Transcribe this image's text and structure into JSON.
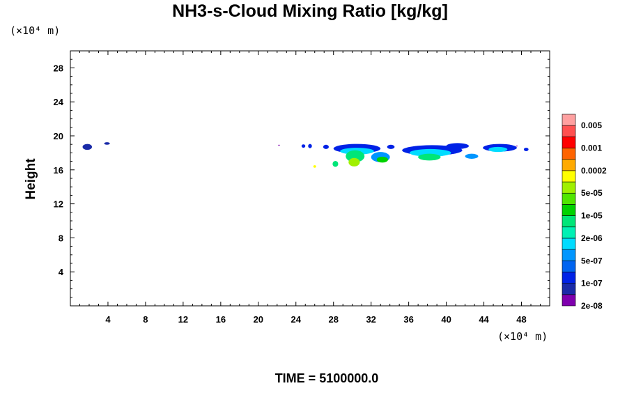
{
  "chart_data": {
    "type": "heatmap",
    "title": "NH3-s-Cloud Mixing Ratio [kg/kg]",
    "ylabel": "Height",
    "x_unit": "(×10⁴ m)",
    "y_unit": "(×10⁴ m)",
    "x_ticks": [
      4,
      8,
      12,
      16,
      20,
      24,
      28,
      32,
      36,
      40,
      44,
      48
    ],
    "y_ticks": [
      4,
      8,
      12,
      16,
      20,
      24,
      28
    ],
    "xlim": [
      0,
      51
    ],
    "ylim": [
      0,
      30
    ],
    "colorbar": {
      "labels": [
        "0.005",
        "0.001",
        "0.0002",
        "5e-05",
        "1e-05",
        "2e-06",
        "5e-07",
        "1e-07",
        "2e-08"
      ],
      "colors": [
        "#7f00ae",
        "#1a2ba8",
        "#0022e6",
        "#0064f0",
        "#0096ff",
        "#00dcff",
        "#00f0b4",
        "#00e678",
        "#00d200",
        "#50e600",
        "#a0f000",
        "#ffff00",
        "#ffaa00",
        "#ff6400",
        "#ff0000",
        "#ff5050",
        "#ffa0a0"
      ]
    },
    "regions": [
      {
        "x": 1.8,
        "y": 18.7,
        "rx": 0.5,
        "ry": 0.35,
        "level": 1
      },
      {
        "x": 3.9,
        "y": 19.1,
        "rx": 0.3,
        "ry": 0.15,
        "level": 1
      },
      {
        "x": 24.8,
        "y": 18.8,
        "rx": 0.2,
        "ry": 0.2,
        "level": 2
      },
      {
        "x": 25.5,
        "y": 18.8,
        "rx": 0.2,
        "ry": 0.25,
        "level": 2
      },
      {
        "x": 27.2,
        "y": 18.7,
        "rx": 0.3,
        "ry": 0.25,
        "level": 2
      },
      {
        "x": 30.5,
        "y": 18.5,
        "rx": 2.5,
        "ry": 0.55,
        "level": 2
      },
      {
        "x": 30.5,
        "y": 18.2,
        "rx": 1.8,
        "ry": 0.4,
        "level": 5
      },
      {
        "x": 30.3,
        "y": 17.6,
        "rx": 1.0,
        "ry": 0.7,
        "level": 7
      },
      {
        "x": 30.2,
        "y": 16.9,
        "rx": 0.6,
        "ry": 0.5,
        "level": 10
      },
      {
        "x": 28.2,
        "y": 16.7,
        "rx": 0.3,
        "ry": 0.35,
        "level": 7
      },
      {
        "x": 33.0,
        "y": 17.5,
        "rx": 1.0,
        "ry": 0.6,
        "level": 4
      },
      {
        "x": 33.2,
        "y": 17.2,
        "rx": 0.6,
        "ry": 0.35,
        "level": 8
      },
      {
        "x": 34.1,
        "y": 18.7,
        "rx": 0.4,
        "ry": 0.25,
        "level": 2
      },
      {
        "x": 38.5,
        "y": 18.3,
        "rx": 3.2,
        "ry": 0.6,
        "level": 2
      },
      {
        "x": 38.3,
        "y": 18.0,
        "rx": 2.2,
        "ry": 0.45,
        "level": 5
      },
      {
        "x": 38.2,
        "y": 17.5,
        "rx": 1.2,
        "ry": 0.4,
        "level": 7
      },
      {
        "x": 41.2,
        "y": 18.8,
        "rx": 1.2,
        "ry": 0.35,
        "level": 2
      },
      {
        "x": 42.7,
        "y": 17.6,
        "rx": 0.7,
        "ry": 0.3,
        "level": 4
      },
      {
        "x": 45.7,
        "y": 18.6,
        "rx": 1.8,
        "ry": 0.45,
        "level": 2
      },
      {
        "x": 45.5,
        "y": 18.4,
        "rx": 1.0,
        "ry": 0.3,
        "level": 5
      },
      {
        "x": 48.5,
        "y": 18.4,
        "rx": 0.25,
        "ry": 0.2,
        "level": 2
      },
      {
        "x": 26.0,
        "y": 16.4,
        "rx": 0.15,
        "ry": 0.15,
        "level": 11
      },
      {
        "x": 22.2,
        "y": 18.9,
        "rx": 0.1,
        "ry": 0.05,
        "level": 0
      },
      {
        "x": 47.5,
        "y": 18.8,
        "rx": 0.1,
        "ry": 0.05,
        "level": 0
      }
    ]
  },
  "footer": {
    "time_label": "TIME = 5100000.0"
  }
}
